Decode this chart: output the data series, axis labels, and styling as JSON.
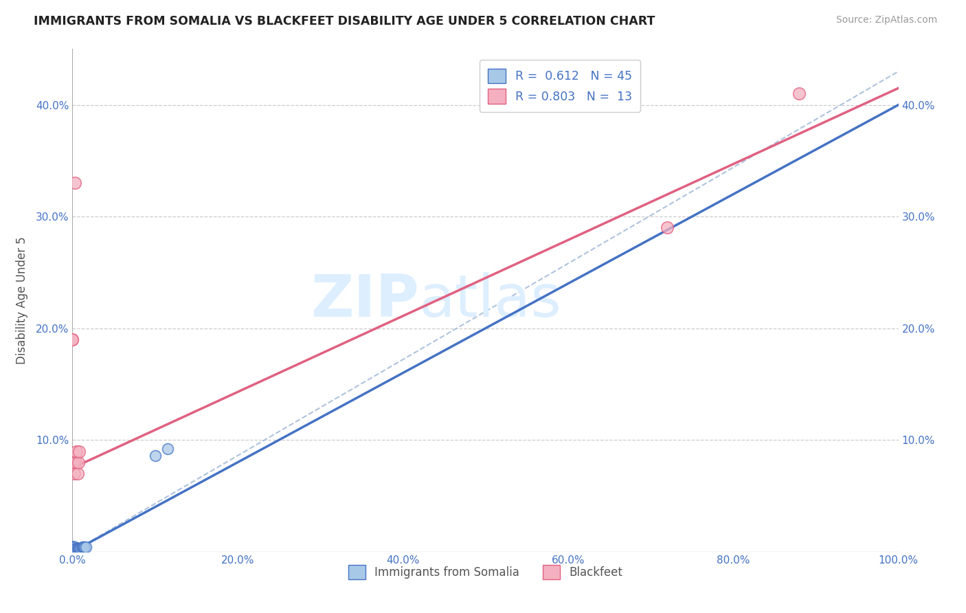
{
  "title": "IMMIGRANTS FROM SOMALIA VS BLACKFEET DISABILITY AGE UNDER 5 CORRELATION CHART",
  "source": "Source: ZipAtlas.com",
  "ylabel": "Disability Age Under 5",
  "legend_label1": "Immigrants from Somalia",
  "legend_label2": "Blackfeet",
  "R1": 0.612,
  "N1": 45,
  "R2": 0.803,
  "N2": 13,
  "color1": "#a8c8e8",
  "color2": "#f4b0c0",
  "line_color1": "#4472c4",
  "line_color2": "#e06080",
  "dashed_line_color": "#a0b8d8",
  "title_color": "#222222",
  "axis_tick_color": "#4472c4",
  "watermark_zip": "ZIP",
  "watermark_atlas": "atlas",
  "watermark_color": "#ddeeff",
  "xlim": [
    0.0,
    1.0
  ],
  "ylim": [
    0.0,
    0.45
  ],
  "xticks": [
    0.0,
    0.2,
    0.4,
    0.6,
    0.8,
    1.0
  ],
  "yticks": [
    0.0,
    0.1,
    0.2,
    0.3,
    0.4
  ],
  "xtick_labels": [
    "0.0%",
    "20.0%",
    "40.0%",
    "60.0%",
    "80.0%",
    "100.0%"
  ],
  "ytick_labels_left": [
    "",
    "10.0%",
    "20.0%",
    "30.0%",
    "40.0%"
  ],
  "ytick_labels_right": [
    "",
    "10.0%",
    "20.0%",
    "30.0%",
    "40.0%"
  ],
  "blue_points_x": [
    0.0,
    0.0,
    0.0,
    0.0,
    0.0,
    0.0,
    0.0,
    0.0,
    0.0,
    0.0,
    0.0,
    0.0,
    0.0,
    0.0,
    0.001,
    0.001,
    0.001,
    0.001,
    0.001,
    0.001,
    0.001,
    0.002,
    0.002,
    0.002,
    0.002,
    0.003,
    0.003,
    0.003,
    0.004,
    0.004,
    0.005,
    0.005,
    0.006,
    0.007,
    0.008,
    0.009,
    0.01,
    0.011,
    0.012,
    0.013,
    0.014,
    0.015,
    0.016,
    0.1,
    0.115
  ],
  "blue_points_y": [
    0.0,
    0.0,
    0.0,
    0.0,
    0.001,
    0.001,
    0.001,
    0.002,
    0.002,
    0.002,
    0.003,
    0.003,
    0.004,
    0.005,
    0.0,
    0.001,
    0.002,
    0.002,
    0.003,
    0.003,
    0.004,
    0.001,
    0.002,
    0.003,
    0.004,
    0.002,
    0.003,
    0.004,
    0.002,
    0.003,
    0.002,
    0.003,
    0.003,
    0.003,
    0.003,
    0.003,
    0.003,
    0.003,
    0.004,
    0.004,
    0.004,
    0.004,
    0.004,
    0.086,
    0.092
  ],
  "pink_points_x": [
    0.0,
    0.0,
    0.001,
    0.001,
    0.002,
    0.003,
    0.004,
    0.005,
    0.006,
    0.007,
    0.008,
    0.72,
    0.88
  ],
  "pink_points_y": [
    0.19,
    0.19,
    0.08,
    0.08,
    0.07,
    0.33,
    0.08,
    0.09,
    0.07,
    0.08,
    0.09,
    0.29,
    0.41
  ],
  "blue_trend_x0": 0.0,
  "blue_trend_y0": 0.0,
  "blue_trend_x1": 1.0,
  "blue_trend_y1": 0.4,
  "pink_trend_x0": 0.0,
  "pink_trend_y0": 0.075,
  "pink_trend_x1": 1.0,
  "pink_trend_y1": 0.415,
  "dash_line_x0": 0.0,
  "dash_line_y0": 0.0,
  "dash_line_x1": 1.0,
  "dash_line_y1": 0.43
}
